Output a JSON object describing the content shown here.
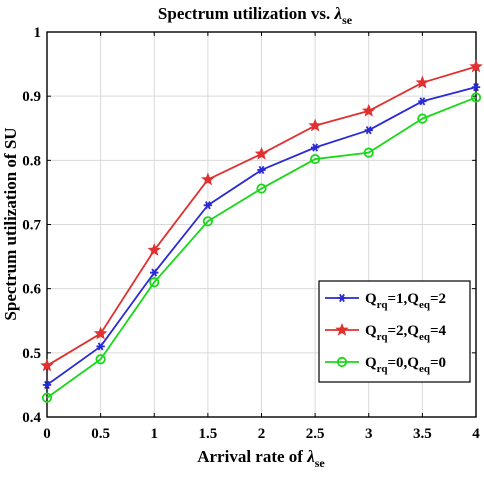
{
  "chart_data": {
    "type": "line",
    "title": "Spectrum utilization vs. λse",
    "title_text": "Spectrum utilization vs. ",
    "title_lambda": "λ",
    "title_sub": "se",
    "xlabel": "Arrival rate of λse",
    "xlabel_text": "Arrival rate of ",
    "xlabel_lambda": "λ",
    "xlabel_sub": "se",
    "ylabel": "Spectrum utilization of SU",
    "x": [
      0,
      0.5,
      1,
      1.5,
      2,
      2.5,
      3,
      3.5,
      4
    ],
    "x_tick_labels": [
      "0",
      "0.5",
      "1",
      "1.5",
      "2",
      "2.5",
      "3",
      "3.5",
      "4"
    ],
    "y_ticks": [
      0.4,
      0.5,
      0.6,
      0.7,
      0.8,
      0.9,
      1.0
    ],
    "y_tick_labels": [
      "0.4",
      "0.5",
      "0.6",
      "0.7",
      "0.8",
      "0.9",
      "1"
    ],
    "xlim": [
      0,
      4
    ],
    "ylim": [
      0.4,
      1.0
    ],
    "grid": true,
    "legend_position": "lower-right",
    "series": [
      {
        "name": "Qrq=1,Qeq=2",
        "legend": {
          "q1": "Q",
          "s1": "rq",
          "m": "=1,Q",
          "s2": "eq",
          "end": "=2"
        },
        "color": "#2a2ad4",
        "marker": "asterisk",
        "values": [
          0.45,
          0.51,
          0.625,
          0.73,
          0.785,
          0.82,
          0.847,
          0.892,
          0.914
        ]
      },
      {
        "name": "Qrq=2,Qeq=4",
        "legend": {
          "q1": "Q",
          "s1": "rq",
          "m": "=2,Q",
          "s2": "eq",
          "end": "=4"
        },
        "color": "#e03030",
        "marker": "star",
        "values": [
          0.48,
          0.53,
          0.66,
          0.77,
          0.81,
          0.854,
          0.877,
          0.921,
          0.946
        ]
      },
      {
        "name": "Qrq=0,Qeq=0",
        "legend": {
          "q1": "Q",
          "s1": "rq",
          "m": "=0,Q",
          "s2": "eq",
          "end": "=0"
        },
        "color": "#18d818",
        "marker": "circle",
        "values": [
          0.43,
          0.49,
          0.61,
          0.705,
          0.756,
          0.802,
          0.812,
          0.865,
          0.898
        ]
      }
    ]
  }
}
